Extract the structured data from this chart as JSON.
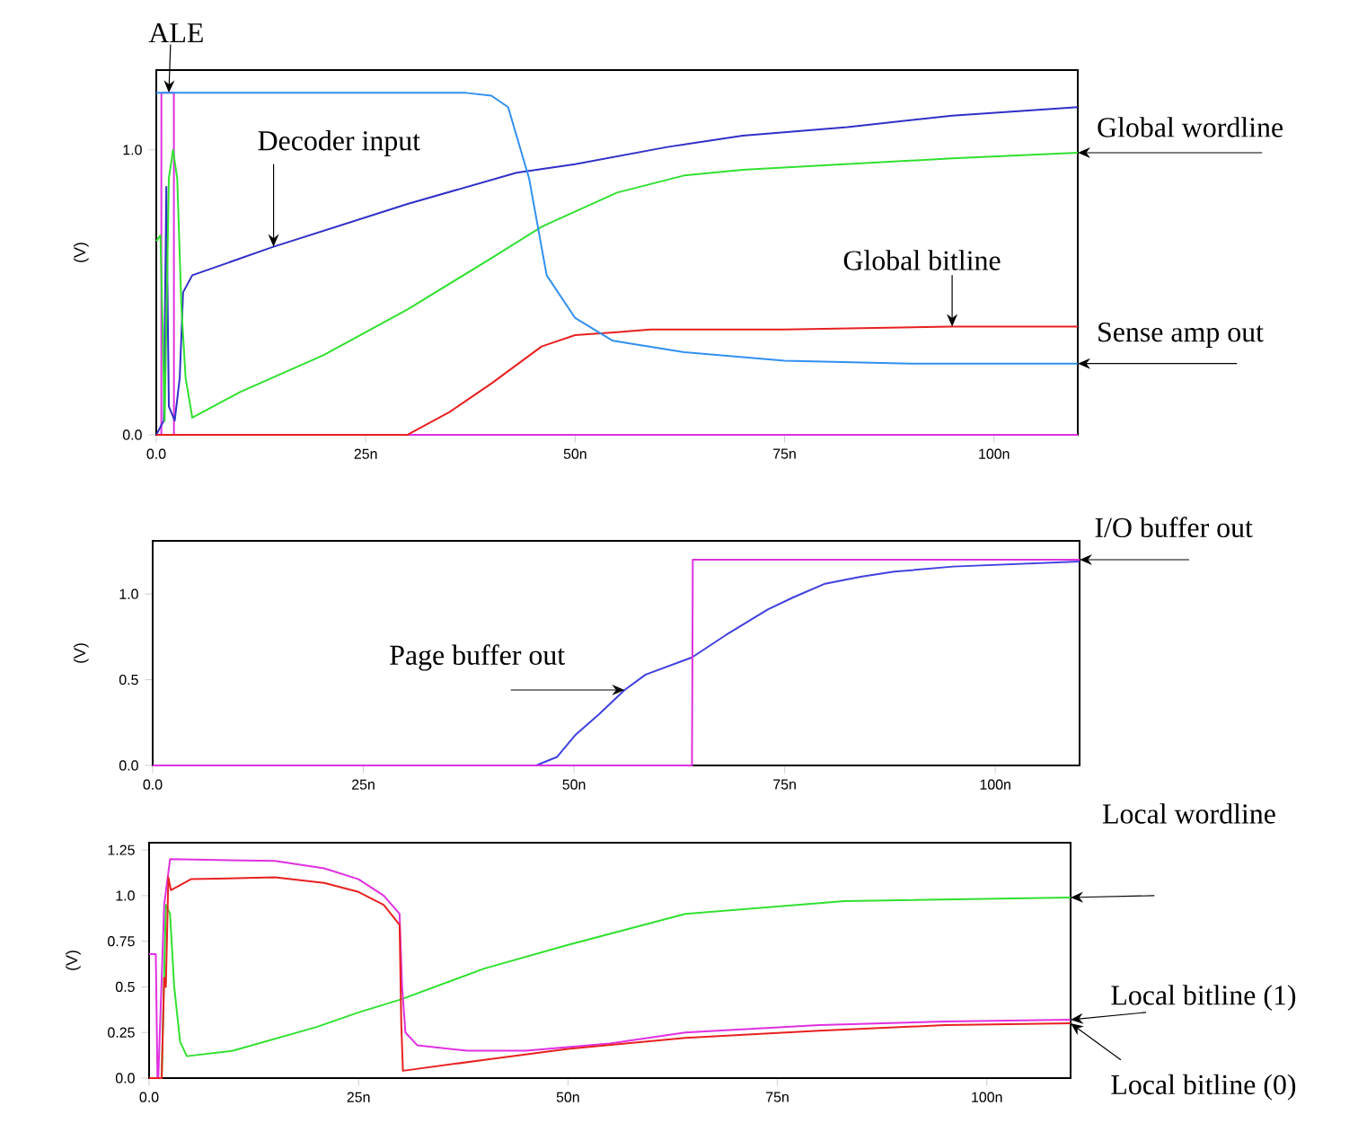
{
  "chart_data": [
    {
      "type": "line",
      "ylabel": "(V)",
      "xlim": [
        0,
        110
      ],
      "ylim": [
        0,
        1.28
      ],
      "xticks": [
        {
          "value": 0,
          "label": "0.0"
        },
        {
          "value": 25,
          "label": "25n"
        },
        {
          "value": 50,
          "label": "50n"
        },
        {
          "value": 75,
          "label": "75n"
        },
        {
          "value": 100,
          "label": "100n"
        }
      ],
      "yticks": [
        {
          "value": 0,
          "label": "0.0"
        },
        {
          "value": 1,
          "label": "1.0"
        }
      ],
      "series": [
        {
          "name": "ALE",
          "color": "#e030e0",
          "x": [
            0,
            0.6,
            0.61,
            1.5,
            2.1,
            2.11,
            110
          ],
          "values": [
            0,
            0,
            1.2,
            1.2,
            1.2,
            0,
            0
          ]
        },
        {
          "name": "Decoder input",
          "color": "#3030c8",
          "x": [
            0,
            0.9,
            1.2,
            1.5,
            2.2,
            2.8,
            3.2,
            4.3,
            14,
            30,
            43,
            50,
            61,
            70,
            82.5,
            95,
            110
          ],
          "values": [
            0,
            0.05,
            0.87,
            0.1,
            0.05,
            0.2,
            0.5,
            0.56,
            0.66,
            0.81,
            0.92,
            0.95,
            1.01,
            1.05,
            1.08,
            1.12,
            1.15
          ]
        },
        {
          "name": "Global wordline",
          "color": "#30e030",
          "x": [
            0,
            0.5,
            1.0,
            1.5,
            2.0,
            2.5,
            3.0,
            3.5,
            4.3,
            10,
            20,
            30,
            40,
            46,
            55,
            63,
            70,
            82.5,
            95,
            110
          ],
          "values": [
            0.68,
            0.7,
            0.05,
            0.9,
            1.0,
            0.9,
            0.45,
            0.2,
            0.06,
            0.15,
            0.28,
            0.44,
            0.62,
            0.73,
            0.85,
            0.91,
            0.93,
            0.95,
            0.97,
            0.99
          ]
        },
        {
          "name": "Global bitline",
          "color": "#e82020",
          "x": [
            0,
            30,
            35,
            40,
            46,
            50,
            55,
            59,
            75,
            95,
            110
          ],
          "values": [
            0,
            0,
            0.08,
            0.18,
            0.31,
            0.35,
            0.36,
            0.37,
            0.37,
            0.38,
            0.38
          ]
        },
        {
          "name": "Sense amp out",
          "color": "#3090f0",
          "x": [
            0,
            37,
            40,
            42,
            44.5,
            46.6,
            50,
            54.5,
            63,
            75,
            90,
            110
          ],
          "values": [
            1.2,
            1.2,
            1.19,
            1.15,
            0.9,
            0.56,
            0.41,
            0.33,
            0.29,
            0.26,
            0.25,
            0.25
          ]
        }
      ]
    },
    {
      "type": "line",
      "ylabel": "(V)",
      "xlim": [
        0,
        110
      ],
      "ylim": [
        0,
        1.31
      ],
      "xticks": [
        {
          "value": 0,
          "label": "0.0"
        },
        {
          "value": 25,
          "label": "25n"
        },
        {
          "value": 50,
          "label": "50n"
        },
        {
          "value": 75,
          "label": "75n"
        },
        {
          "value": 100,
          "label": "100n"
        }
      ],
      "yticks": [
        {
          "value": 0,
          "label": "0.0"
        },
        {
          "value": 0.5,
          "label": "0.5"
        },
        {
          "value": 1,
          "label": "1.0"
        }
      ],
      "series": [
        {
          "name": "Page buffer out",
          "color": "#4040e0",
          "x": [
            0,
            45.5,
            48,
            50.2,
            53,
            56,
            58.5,
            64,
            68,
            73,
            76,
            79.8,
            84,
            88,
            95,
            110
          ],
          "values": [
            0,
            0,
            0.05,
            0.18,
            0.3,
            0.44,
            0.53,
            0.63,
            0.76,
            0.91,
            0.98,
            1.06,
            1.1,
            1.13,
            1.16,
            1.19
          ]
        },
        {
          "name": "I/O buffer out",
          "color": "#e030e0",
          "x": [
            0,
            64,
            64.1,
            110
          ],
          "values": [
            0,
            0,
            1.2,
            1.2
          ]
        }
      ]
    },
    {
      "type": "line",
      "ylabel": "(V)",
      "xlim": [
        0,
        110
      ],
      "ylim": [
        0,
        1.29
      ],
      "xticks": [
        {
          "value": 0,
          "label": "0.0"
        },
        {
          "value": 25,
          "label": "25n"
        },
        {
          "value": 50,
          "label": "50n"
        },
        {
          "value": 75,
          "label": "75n"
        },
        {
          "value": 100,
          "label": "100n"
        }
      ],
      "yticks": [
        {
          "value": 0,
          "label": "0.0"
        },
        {
          "value": 0.25,
          "label": "0.25"
        },
        {
          "value": 0.5,
          "label": "0.5"
        },
        {
          "value": 0.75,
          "label": "0.75"
        },
        {
          "value": 1,
          "label": "1.0"
        },
        {
          "value": 1.25,
          "label": "1.25"
        }
      ],
      "series": [
        {
          "name": "Local wordline",
          "color": "#30e030",
          "x": [
            0,
            1.5,
            2.0,
            2.5,
            3.0,
            3.7,
            4.5,
            10,
            20,
            25,
            30,
            40,
            50,
            64,
            83,
            110
          ],
          "values": [
            0,
            0,
            0.95,
            0.9,
            0.5,
            0.2,
            0.12,
            0.15,
            0.28,
            0.36,
            0.43,
            0.6,
            0.73,
            0.9,
            0.97,
            0.99
          ]
        },
        {
          "name": "Local bitline (1)",
          "color": "#e030e0",
          "x": [
            0,
            0.8,
            1.0,
            1.1,
            1.8,
            2.5,
            15,
            20.9,
            25,
            28,
            29.9,
            30.2,
            30.6,
            32,
            38,
            45,
            55,
            64,
            80,
            95,
            110
          ],
          "values": [
            0.68,
            0.68,
            0,
            0,
            0.95,
            1.2,
            1.19,
            1.15,
            1.09,
            1.0,
            0.9,
            0.5,
            0.25,
            0.18,
            0.15,
            0.15,
            0.19,
            0.25,
            0.29,
            0.31,
            0.32
          ]
        },
        {
          "name": "Local bitline (0)",
          "color": "#e82020",
          "x": [
            0,
            1.5,
            1.8,
            2.0,
            2.3,
            2.6,
            5,
            15,
            20.9,
            25,
            28,
            29.9,
            30.1,
            30.3,
            40,
            50,
            64,
            80,
            95,
            110
          ],
          "values": [
            0,
            0,
            0.55,
            0.5,
            1.1,
            1.03,
            1.09,
            1.1,
            1.07,
            1.02,
            0.95,
            0.84,
            0.3,
            0.04,
            0.1,
            0.16,
            0.22,
            0.26,
            0.29,
            0.3
          ]
        }
      ]
    }
  ]
}
